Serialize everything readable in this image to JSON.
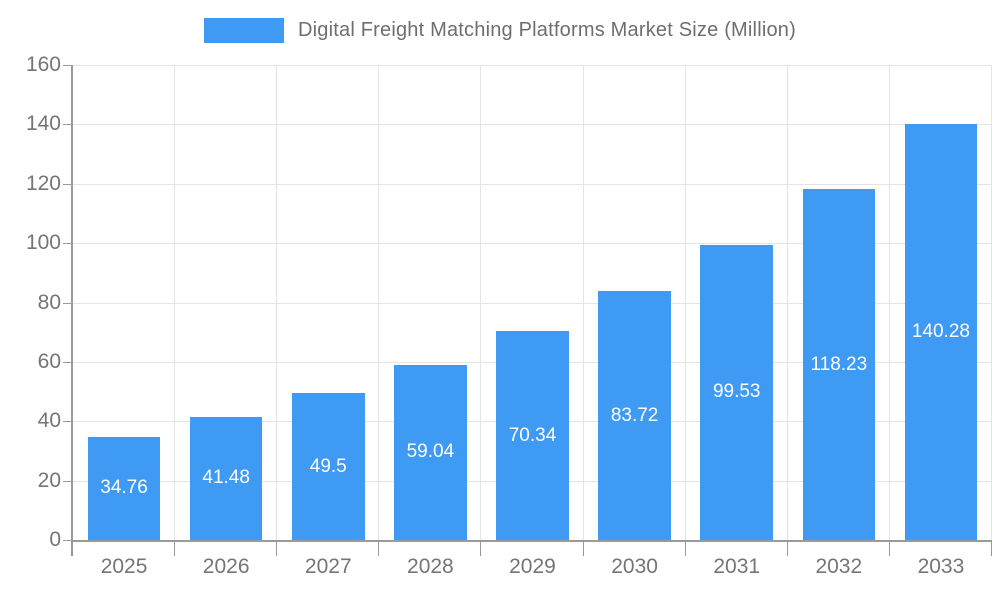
{
  "chart_data": {
    "type": "bar",
    "title": "Digital Freight Matching Platforms Market Size (Million)",
    "categories": [
      "2025",
      "2026",
      "2027",
      "2028",
      "2029",
      "2030",
      "2031",
      "2032",
      "2033"
    ],
    "values": [
      34.76,
      41.48,
      49.5,
      59.04,
      70.34,
      83.72,
      99.53,
      118.23,
      140.28
    ],
    "value_labels": [
      "34.76",
      "41.48",
      "49.5",
      "59.04",
      "70.34",
      "83.72",
      "99.53",
      "118.23",
      "140.28"
    ],
    "xlabel": "",
    "ylabel": "",
    "ylim": [
      0,
      160
    ],
    "ytick_step": 20,
    "ytick_labels": [
      "0",
      "20",
      "40",
      "60",
      "80",
      "100",
      "120",
      "140",
      "160"
    ],
    "grid": "on",
    "legend_position": "top",
    "colors": {
      "bar": "#3e9af2",
      "grid": "#e4e4e4",
      "axis": "#9a9a9a",
      "tick_text": "#757575",
      "title_text": "#6e6e6e",
      "bar_label_text": "#ffffff"
    }
  }
}
